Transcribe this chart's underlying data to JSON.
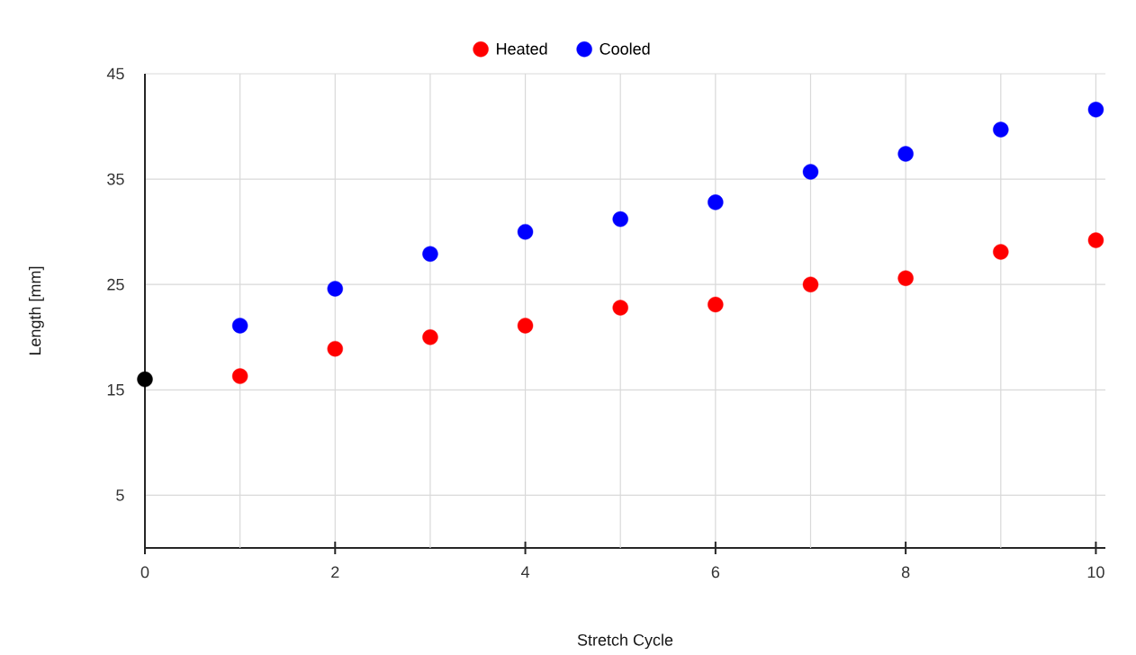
{
  "chart_data": {
    "type": "scatter",
    "xlabel": "Stretch Cycle",
    "ylabel": "Length [mm]",
    "series": [
      {
        "name": "Heated",
        "color": "#ff0000",
        "x": [
          1,
          2,
          3,
          4,
          5,
          6,
          7,
          8,
          9,
          10
        ],
        "values": [
          16.3,
          18.9,
          20.0,
          21.1,
          22.8,
          23.1,
          25.0,
          25.6,
          28.1,
          29.2
        ]
      },
      {
        "name": "Cooled",
        "color": "#0000ff",
        "x": [
          1,
          2,
          3,
          4,
          5,
          6,
          7,
          8,
          9,
          10
        ],
        "values": [
          21.1,
          24.6,
          27.9,
          30.0,
          31.2,
          32.8,
          35.7,
          37.4,
          39.7,
          41.6
        ]
      },
      {
        "color": "#000000",
        "x": [
          0
        ],
        "values": [
          16.0
        ]
      }
    ],
    "xlim": [
      0,
      10.1
    ],
    "ylim": [
      0,
      45
    ],
    "xticks": [
      0,
      {
        "value": 1,
        "label": null
      },
      2,
      {
        "value": 3,
        "label": null
      },
      4,
      {
        "value": 5,
        "label": null
      },
      6,
      {
        "value": 7,
        "label": null
      },
      8,
      {
        "value": 9,
        "label": null
      },
      10
    ],
    "yticks": [
      5,
      15,
      25,
      35,
      45
    ],
    "grid": true,
    "legend": "top",
    "marker": "circle"
  }
}
